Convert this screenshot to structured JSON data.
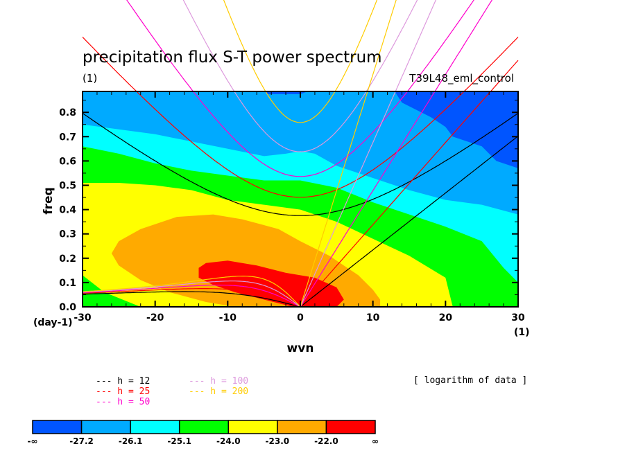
{
  "chart_data": {
    "type": "heatmap",
    "subtype": "filled-contour",
    "title": "precipitation flux S-T power spectrum",
    "subtitle_left": "(1)",
    "subtitle_right": "T39L48_eml_control",
    "xlabel": "wvn",
    "ylabel": "freq",
    "x_unit_label": "(1)",
    "y_unit_label": "(day-1)",
    "xlim": [
      -30,
      30
    ],
    "ylim": [
      0,
      0.886
    ],
    "x_ticks": [
      -30,
      -20,
      -10,
      0,
      10,
      20,
      30
    ],
    "x_tick_labels": [
      "-30",
      "-20",
      "-10",
      "0",
      "10",
      "20",
      "30"
    ],
    "y_ticks": [
      0.0,
      0.1,
      0.2,
      0.3,
      0.4,
      0.5,
      0.6,
      0.7,
      0.8
    ],
    "y_tick_labels": [
      "0.0",
      "0.1",
      "0.2",
      "0.3",
      "0.4",
      "0.5",
      "0.6",
      "0.7",
      "0.8"
    ],
    "note": "[ logarithm of data ]",
    "colorbar": {
      "levels": [
        "-∞",
        "-27.2",
        "-26.1",
        "-25.1",
        "-24.0",
        "-23.0",
        "-22.0",
        "∞"
      ],
      "colors": [
        "#0055ff",
        "#00aaff",
        "#00ffff",
        "#00ff00",
        "#ffff00",
        "#ffaa00",
        "#ff0000"
      ]
    },
    "contour_regions": [
      {
        "level": "-27.2 to -26.1",
        "color": "#00aaff",
        "boundary_lower": [
          [
            -30,
            0.75
          ],
          [
            -25,
            0.73
          ],
          [
            -20,
            0.71
          ],
          [
            -15,
            0.68
          ],
          [
            -10,
            0.65
          ],
          [
            -5,
            0.62
          ],
          [
            -2,
            0.63
          ],
          [
            0,
            0.64
          ],
          [
            2,
            0.63
          ],
          [
            5,
            0.58
          ],
          [
            10,
            0.53
          ],
          [
            15,
            0.48
          ],
          [
            20,
            0.44
          ],
          [
            25,
            0.42
          ],
          [
            30,
            0.38
          ]
        ]
      },
      {
        "level": "-26.1 to -25.1",
        "color": "#00ffff",
        "boundary_lower": [
          [
            -30,
            0.66
          ],
          [
            -25,
            0.63
          ],
          [
            -20,
            0.59
          ],
          [
            -15,
            0.56
          ],
          [
            -10,
            0.54
          ],
          [
            -5,
            0.52
          ],
          [
            0,
            0.52
          ],
          [
            5,
            0.49
          ],
          [
            10,
            0.43
          ],
          [
            15,
            0.38
          ],
          [
            20,
            0.33
          ],
          [
            25,
            0.27
          ],
          [
            28,
            0.16
          ],
          [
            30,
            0.1
          ]
        ]
      },
      {
        "level": "-25.1 to -24.0",
        "color": "#00ff00",
        "boundary_lower": [
          [
            -30,
            0.51
          ],
          [
            -25,
            0.51
          ],
          [
            -20,
            0.5
          ],
          [
            -15,
            0.48
          ],
          [
            -10,
            0.44
          ],
          [
            -5,
            0.42
          ],
          [
            0,
            0.4
          ],
          [
            5,
            0.35
          ],
          [
            10,
            0.28
          ],
          [
            15,
            0.21
          ],
          [
            20,
            0.12
          ],
          [
            21,
            0.0
          ]
        ]
      },
      {
        "level": "-24.0 to -23.0",
        "color": "#ffff00",
        "boundary_lower": [
          [
            -26,
            0.22
          ],
          [
            -22,
            0.28
          ],
          [
            -15,
            0.37
          ],
          [
            -10,
            0.37
          ],
          [
            -5,
            0.32
          ],
          [
            0,
            0.26
          ],
          [
            5,
            0.19
          ],
          [
            10,
            0.07
          ],
          [
            11,
            0.0
          ]
        ]
      },
      {
        "level": "-23.0 to -22.0",
        "color": "#ffaa00",
        "boundary_lower": [
          [
            -14,
            0.15
          ],
          [
            -12,
            0.17
          ],
          [
            -8,
            0.15
          ],
          [
            -3,
            0.1
          ],
          [
            2,
            0.07
          ],
          [
            5,
            0.03
          ],
          [
            5,
            0.0
          ]
        ]
      }
    ],
    "dispersion_curves_legend": [
      {
        "label": "h = 12",
        "color": "#000000"
      },
      {
        "label": "h = 25",
        "color": "#ff0000"
      },
      {
        "label": "h = 50",
        "color": "#ff00cc"
      },
      {
        "label": "h =100",
        "color": "#dd99dd"
      },
      {
        "label": "h =200",
        "color": "#ffcc00"
      }
    ],
    "equivalent_depths_m": [
      12,
      25,
      50,
      100,
      200
    ]
  }
}
